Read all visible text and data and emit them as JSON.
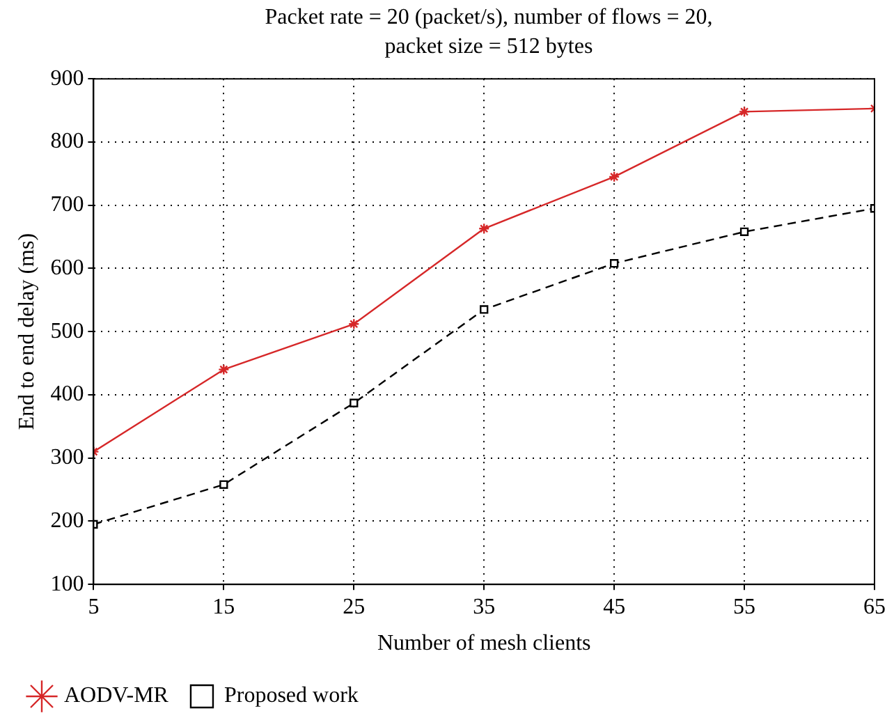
{
  "chart_data": {
    "type": "line",
    "title": "Packet rate = 20 (packet/s), number of flows = 20, packet size = 512 bytes",
    "xlabel": "Number of mesh clients",
    "ylabel": "End to end delay (ms)",
    "x": [
      5,
      15,
      25,
      35,
      45,
      55,
      65
    ],
    "series": [
      {
        "name": "AODV-MR",
        "color": "#d62728",
        "values": [
          310,
          440,
          512,
          663,
          745,
          848,
          853
        ],
        "marker": "cross",
        "line_style": "solid"
      },
      {
        "name": "Proposed work",
        "color": "#000000",
        "values": [
          195,
          258,
          387,
          535,
          608,
          658,
          695
        ],
        "marker": "square",
        "line_style": "dashed"
      }
    ],
    "xlim": [
      5,
      65
    ],
    "xticks": [
      5,
      15,
      25,
      35,
      45,
      55,
      65
    ],
    "ylim": [
      100,
      900
    ],
    "yticks": [
      100,
      200,
      300,
      400,
      500,
      600,
      700,
      800,
      900
    ],
    "grid": true,
    "legend": "bottom left"
  }
}
